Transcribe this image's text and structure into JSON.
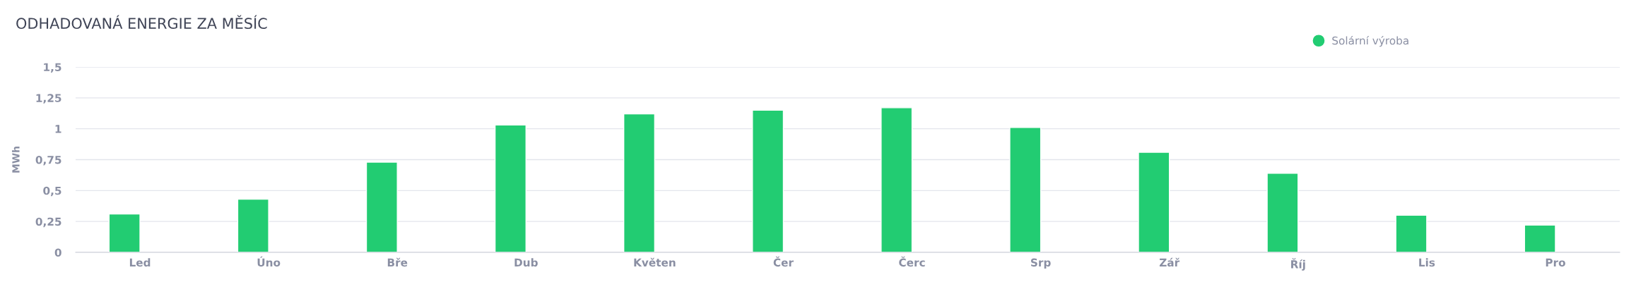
{
  "chart_data": {
    "type": "bar",
    "title": "ODHADOVANÁ ENERGIE ZA MĚSÍC",
    "ylabel": "MWh",
    "categories": [
      "Led",
      "Úno",
      "Bře",
      "Dub",
      "Květen",
      "Čer",
      "Čerc",
      "Srp",
      "Zář",
      "Říj",
      "Lis",
      "Pro"
    ],
    "series": [
      {
        "name": "Solární výroba",
        "color": "#22cc72",
        "values": [
          0.31,
          0.43,
          0.73,
          1.03,
          1.12,
          1.15,
          1.17,
          1.01,
          0.81,
          0.64,
          0.3,
          0.22
        ]
      }
    ],
    "ylim": [
      0,
      1.5
    ],
    "yticks": [
      0,
      {
        "value": 0.25,
        "label": "0,25"
      },
      {
        "value": 0.5,
        "label": "0,5"
      },
      {
        "value": 0.75,
        "label": "0,75"
      },
      1,
      {
        "value": 1.25,
        "label": "1,25"
      },
      {
        "value": 1.5,
        "label": "1,5"
      }
    ],
    "grid": "y",
    "legend": "top right"
  }
}
